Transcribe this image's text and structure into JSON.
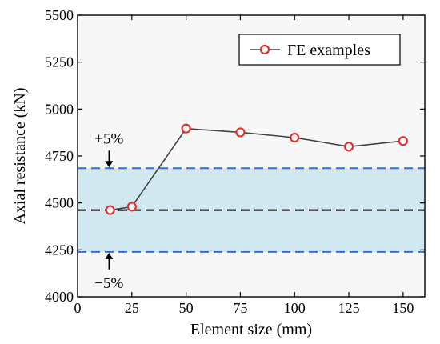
{
  "chart_data": {
    "type": "line",
    "xlabel": "Element size (mm)",
    "ylabel": "Axial resistance (kN)",
    "xlim": [
      0,
      160
    ],
    "ylim": [
      4000,
      5500
    ],
    "xticks": [
      0,
      25,
      50,
      75,
      100,
      125,
      150
    ],
    "yticks": [
      4000,
      4250,
      4500,
      4750,
      5000,
      5250,
      5500
    ],
    "legend_position": "top-right",
    "series": [
      {
        "name": "FE examples",
        "x": [
          15,
          25,
          50,
          75,
          100,
          125,
          150
        ],
        "y": [
          4462,
          4480,
          4896,
          4876,
          4848,
          4800,
          4830
        ],
        "line_color": "#444444",
        "marker_edge_color": "#e03030",
        "marker_face_color": "#ffffff"
      }
    ],
    "reference_lines": [
      {
        "value": 4462,
        "color": "#000000",
        "style": "dashed"
      },
      {
        "value": 4685,
        "color": "#2f6fdc",
        "style": "dashed"
      },
      {
        "value": 4239,
        "color": "#2f6fdc",
        "style": "dashed"
      }
    ],
    "band": {
      "from": 4239,
      "to": 4685,
      "color": "#d2e8f0"
    },
    "annotations": [
      {
        "text": "+5%",
        "target": 4685,
        "arrow": "down"
      },
      {
        "text": "−5%",
        "target": 4239,
        "arrow": "up"
      }
    ],
    "plot_background": "#f7f7f7"
  }
}
